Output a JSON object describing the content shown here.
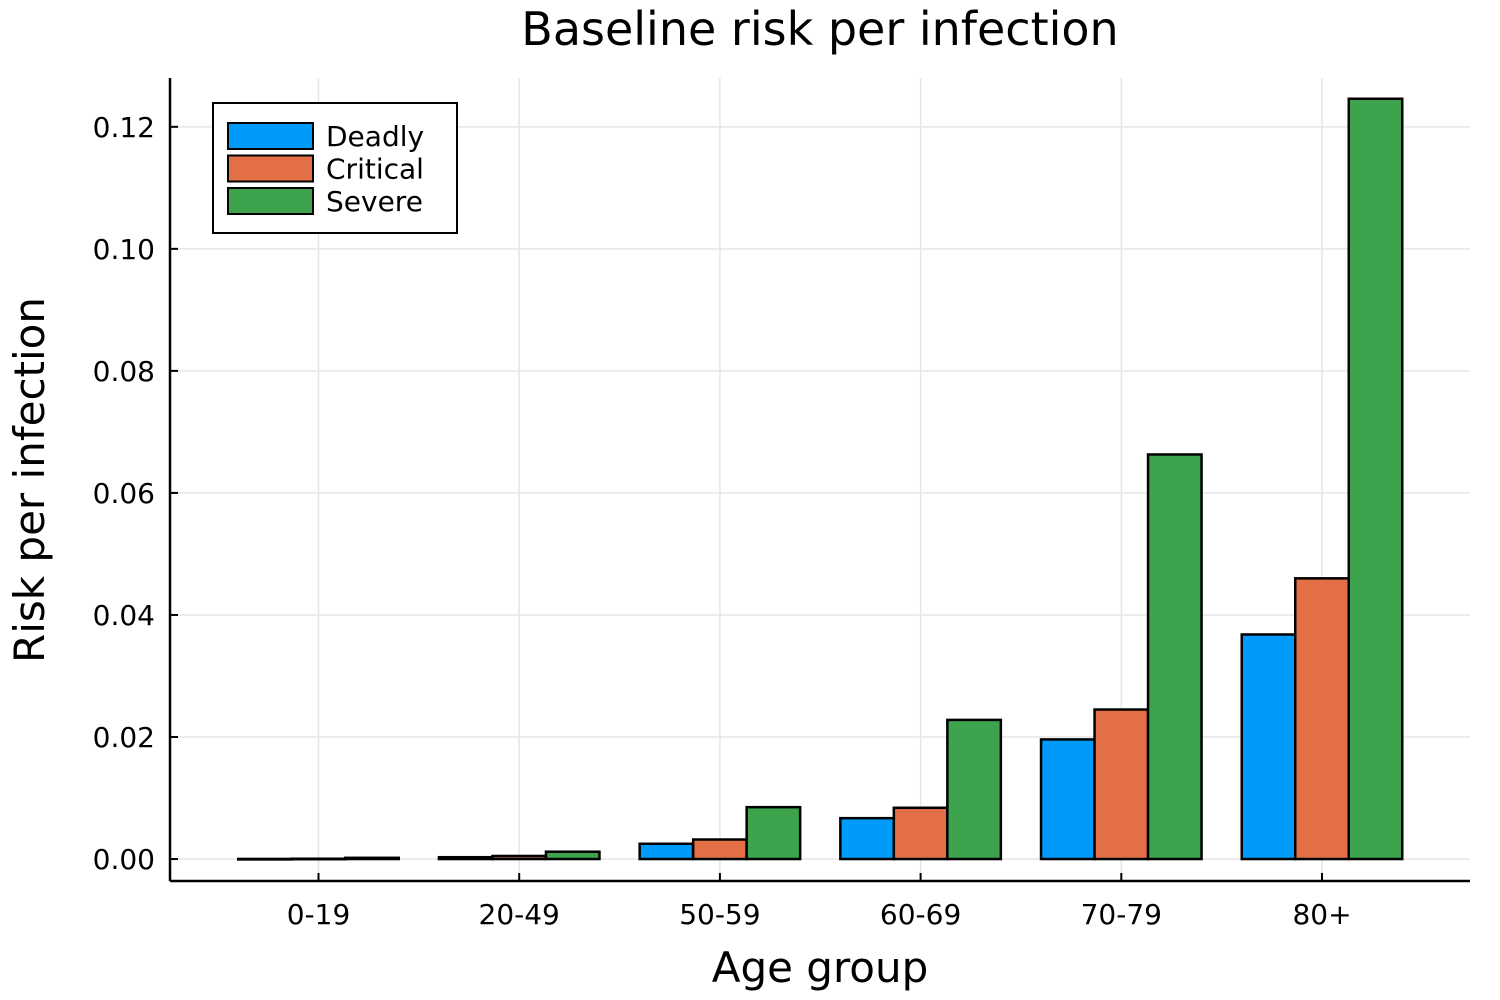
{
  "chart_data": {
    "type": "bar",
    "title": "Baseline risk per infection",
    "xlabel": "Age group",
    "ylabel": "Risk per infection",
    "categories": [
      "0-19",
      "20-49",
      "50-59",
      "60-69",
      "70-79",
      "80+"
    ],
    "series": [
      {
        "name": "Deadly",
        "color": "#009AFA",
        "values": [
          2e-05,
          0.0003,
          0.0025,
          0.0067,
          0.0196,
          0.0368
        ]
      },
      {
        "name": "Critical",
        "color": "#E26F46",
        "values": [
          5e-05,
          0.0005,
          0.0032,
          0.0084,
          0.0245,
          0.046
        ]
      },
      {
        "name": "Severe",
        "color": "#3DA44D",
        "values": [
          0.0002,
          0.0012,
          0.0085,
          0.0228,
          0.0663,
          0.1246
        ]
      }
    ],
    "ylim": [
      -0.0036,
      0.128
    ],
    "yticks": [
      0.0,
      0.02,
      0.04,
      0.06,
      0.08,
      0.1,
      0.12
    ],
    "ytick_labels": [
      "0.00",
      "0.02",
      "0.04",
      "0.06",
      "0.08",
      "0.10",
      "0.12"
    ],
    "grid": true,
    "legend_position": "top-left"
  }
}
